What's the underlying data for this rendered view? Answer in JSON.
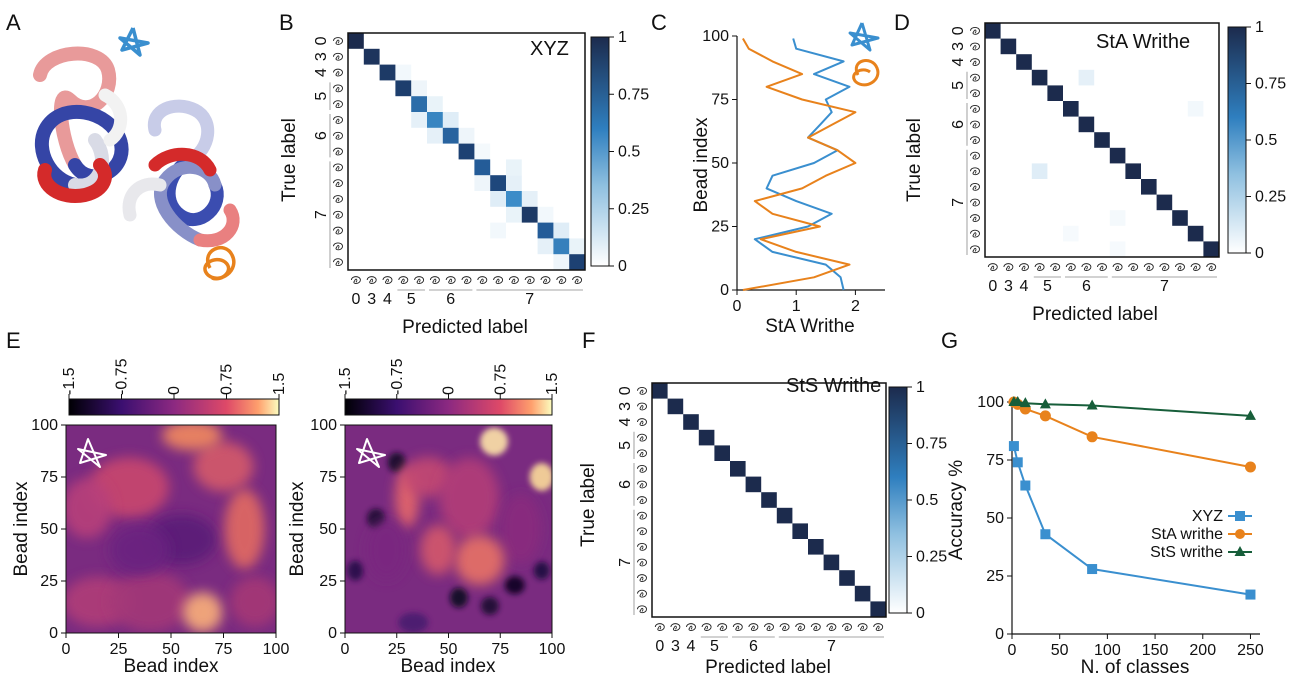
{
  "panels": {
    "A": "A",
    "B": "B",
    "C": "C",
    "D": "D",
    "E": "E",
    "F": "F",
    "G": "G"
  },
  "colors": {
    "blue": "#3a8fcf",
    "orange": "#e8821c",
    "green": "#175e3a",
    "navy": "#1c2b4d"
  },
  "chart_data": [
    {
      "panel": "B",
      "type": "heatmap",
      "title": "XYZ",
      "xlabel": "Predicted label",
      "ylabel": "True label",
      "group_labels": [
        "0",
        "3",
        "4",
        "5",
        "6",
        "7"
      ],
      "colorbar_ticks": [
        "1",
        "0.75",
        "0.5",
        "0.25",
        "0"
      ],
      "size": 15,
      "diagonal": [
        1.0,
        0.95,
        0.92,
        0.9,
        0.68,
        0.58,
        0.72,
        0.88,
        0.75,
        0.85,
        0.55,
        0.92,
        0.75,
        0.6,
        0.88
      ],
      "offdiag": [
        [
          3,
          4,
          0.08
        ],
        [
          4,
          5,
          0.1
        ],
        [
          5,
          4,
          0.12
        ],
        [
          5,
          6,
          0.15
        ],
        [
          6,
          5,
          0.12
        ],
        [
          6,
          7,
          0.08
        ],
        [
          8,
          10,
          0.1
        ],
        [
          9,
          10,
          0.12
        ],
        [
          10,
          9,
          0.15
        ],
        [
          10,
          11,
          0.12
        ],
        [
          11,
          10,
          0.1
        ],
        [
          12,
          13,
          0.15
        ],
        [
          13,
          12,
          0.12
        ],
        [
          2,
          3,
          0.06
        ],
        [
          9,
          8,
          0.08
        ],
        [
          13,
          14,
          0.1
        ],
        [
          14,
          13,
          0.08
        ],
        [
          12,
          9,
          0.06
        ],
        [
          11,
          12,
          0.06
        ],
        [
          7,
          8,
          0.05
        ]
      ]
    },
    {
      "panel": "C",
      "type": "line",
      "xlabel": "StA Writhe",
      "ylabel": "Bead index",
      "xlim": [
        0,
        2.5
      ],
      "ylim": [
        0,
        100
      ],
      "xticks": [
        "0",
        "1",
        "2"
      ],
      "yticks": [
        "0",
        "25",
        "50",
        "75",
        "100"
      ],
      "series": [
        {
          "color": "#3a8fcf",
          "y": [
            0,
            5,
            10,
            15,
            20,
            25,
            30,
            35,
            40,
            45,
            50,
            55,
            60,
            65,
            70,
            75,
            80,
            85,
            90,
            95,
            99
          ],
          "x": [
            1.8,
            1.75,
            1.5,
            0.6,
            0.3,
            1.2,
            1.6,
            1.0,
            0.5,
            0.6,
            1.3,
            1.7,
            1.2,
            1.4,
            1.6,
            1.5,
            1.9,
            1.3,
            1.8,
            1.0,
            0.95
          ]
        },
        {
          "color": "#e8821c",
          "y": [
            0,
            5,
            10,
            15,
            20,
            25,
            30,
            35,
            40,
            45,
            50,
            55,
            60,
            65,
            70,
            75,
            80,
            85,
            90,
            95,
            99
          ],
          "x": [
            0.1,
            1.3,
            1.9,
            1.0,
            0.4,
            1.4,
            0.6,
            0.3,
            1.1,
            1.5,
            2.0,
            1.7,
            1.2,
            1.6,
            2.0,
            1.1,
            0.5,
            1.1,
            0.6,
            0.2,
            0.1
          ]
        }
      ]
    },
    {
      "panel": "D",
      "type": "heatmap",
      "title": "StA Writhe",
      "xlabel": "Predicted label",
      "ylabel": "True label",
      "group_labels": [
        "0",
        "3",
        "4",
        "5",
        "6",
        "7"
      ],
      "colorbar_ticks": [
        "1",
        "0.75",
        "0.5",
        "0.25",
        "0"
      ],
      "size": 15,
      "diagonal": [
        1,
        1,
        1,
        1,
        1,
        1,
        1,
        1,
        1,
        1,
        1,
        1,
        1,
        1,
        1
      ],
      "offdiag": [
        [
          3,
          6,
          0.12
        ],
        [
          9,
          3,
          0.15
        ],
        [
          5,
          13,
          0.06
        ],
        [
          12,
          8,
          0.05
        ],
        [
          14,
          8,
          0.04
        ],
        [
          13,
          5,
          0.04
        ]
      ]
    },
    {
      "panel": "E1",
      "type": "heatmap",
      "xlabel": "Bead index",
      "ylabel": "Bead index",
      "ticks": [
        "0",
        "25",
        "50",
        "75",
        "100"
      ],
      "colorbar_ticks": [
        "-1.5",
        "-0.75",
        "0",
        "0.75",
        "1.5"
      ]
    },
    {
      "panel": "E2",
      "type": "heatmap",
      "xlabel": "Bead index",
      "ylabel": "Bead index",
      "ticks": [
        "0",
        "25",
        "50",
        "75",
        "100"
      ],
      "colorbar_ticks": [
        "-1.5",
        "-0.75",
        "0",
        "0.75",
        "1.5"
      ]
    },
    {
      "panel": "F",
      "type": "heatmap",
      "title": "StS Writhe",
      "xlabel": "Predicted label",
      "ylabel": "True label",
      "group_labels": [
        "0",
        "3",
        "4",
        "5",
        "6",
        "7"
      ],
      "colorbar_ticks": [
        "1",
        "0.75",
        "0.5",
        "0.25",
        "0"
      ],
      "size": 15,
      "diagonal": [
        1,
        1,
        1,
        1,
        1,
        1,
        1,
        1,
        1,
        1,
        1,
        1,
        1,
        1,
        1
      ],
      "offdiag": []
    },
    {
      "panel": "G",
      "type": "line",
      "xlabel": "N. of classes",
      "ylabel": "Accuracy %",
      "xlim": [
        0,
        260
      ],
      "ylim": [
        0,
        100
      ],
      "xticks": [
        "0",
        "50",
        "100",
        "150",
        "200",
        "250"
      ],
      "yticks": [
        "0",
        "25",
        "50",
        "75",
        "100"
      ],
      "series": [
        {
          "name": "XYZ",
          "color": "#3a8fcf",
          "marker": "square",
          "x": [
            2,
            6,
            14,
            35,
            84,
            250
          ],
          "y": [
            81,
            74,
            64,
            43,
            28,
            17
          ]
        },
        {
          "name": "StA writhe",
          "color": "#e8821c",
          "marker": "circle",
          "x": [
            2,
            6,
            14,
            35,
            84,
            250
          ],
          "y": [
            100,
            99,
            97,
            94,
            85,
            72
          ]
        },
        {
          "name": "StS writhe",
          "color": "#175e3a",
          "marker": "triangle",
          "x": [
            2,
            6,
            14,
            35,
            84,
            250
          ],
          "y": [
            100,
            100,
            99.5,
            99,
            98.5,
            94
          ]
        }
      ]
    }
  ]
}
